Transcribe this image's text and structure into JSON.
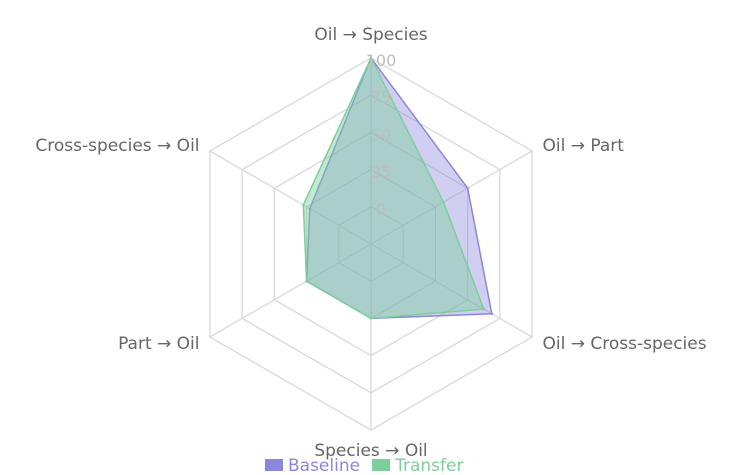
{
  "chart_data": {
    "type": "radar",
    "axes": [
      "Oil → Species",
      "Oil → Part",
      "Oil → Cross-species",
      "Species → Oil",
      "Part → Oil",
      "Cross-species → Oil"
    ],
    "ticks": [
      "0",
      "25",
      "50",
      "75",
      "100"
    ],
    "range": [
      0,
      100
    ],
    "legend": "bottom",
    "series": [
      {
        "name": "Baseline",
        "values": [
          100,
          60,
          75,
          40,
          40,
          38
        ],
        "stroke": "#8a87dd",
        "fill": "rgba(138,135,221,0.40)",
        "legend_color": "#8a87dd"
      },
      {
        "name": "Transfer",
        "values": [
          100,
          45,
          70,
          40,
          40,
          42
        ],
        "stroke": "#7ccf9c",
        "fill": "rgba(124,207,156,0.45)",
        "legend_color": "#7ccf9c"
      }
    ]
  }
}
